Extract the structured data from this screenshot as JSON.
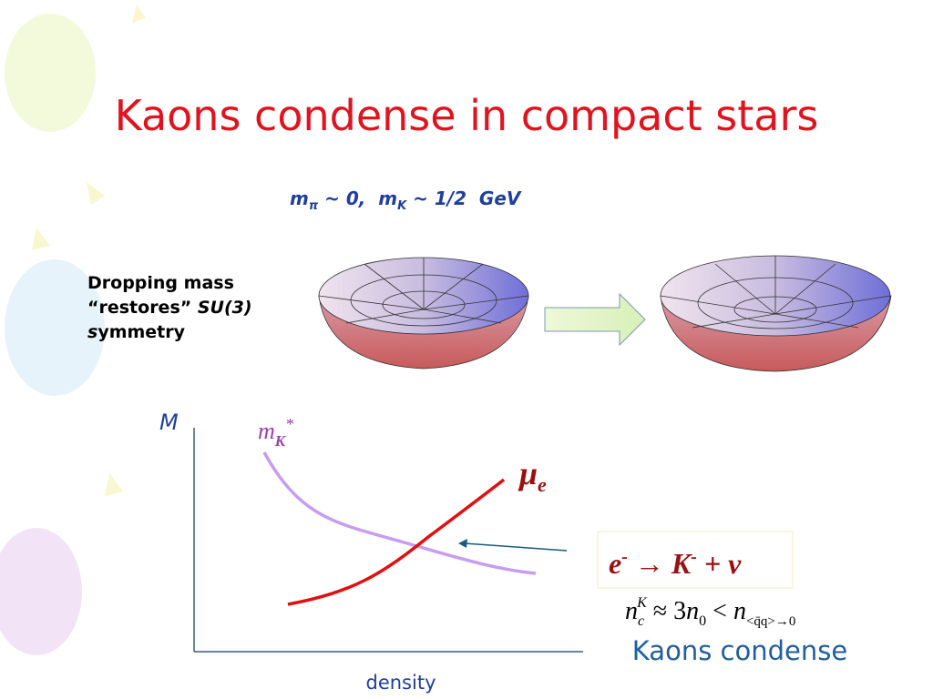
{
  "title": "Kaons condense in compact stars",
  "masses": {
    "m1": "m",
    "pi": "π",
    "mid": " ~ 0,  m",
    "K": "K",
    "end": " ~ 1/2  GeV"
  },
  "side_text": {
    "line1": "Dropping mass",
    "line2": "“restores” ",
    "su3": "SU(3)",
    "s": "s",
    "rest": "ymmetry"
  },
  "graph": {
    "y_label": "M",
    "x_label": "density",
    "kaon_label": {
      "m": "m",
      "K": "K",
      "star": "*"
    },
    "electron_label": {
      "mu": "μ",
      "e": "e"
    }
  },
  "reaction": {
    "e": "e",
    "minus1": "-",
    "arrow": " → ",
    "K": "K",
    "minus2": "-",
    "rest": " + ν"
  },
  "critical": {
    "n": "n",
    "c": "c",
    "K": "K",
    "approx": " ≈ 3",
    "n2": "n",
    "zero": "0",
    "lt": " < ",
    "n3": "n",
    "sub": "<q̄q>→0"
  },
  "conclusion": "Kaons condense"
}
